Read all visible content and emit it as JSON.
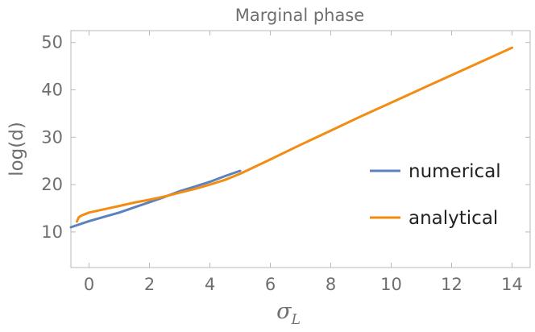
{
  "chart_data": {
    "type": "line",
    "title": "Marginal phase",
    "xlabel": "σ",
    "xlabel_subscript": "L",
    "ylabel": "log(d)",
    "xlim": [
      -0.6,
      14.6
    ],
    "ylim": [
      2.5,
      52.5
    ],
    "xticks": [
      0,
      2,
      4,
      6,
      8,
      10,
      12,
      14
    ],
    "yticks": [
      10,
      20,
      30,
      40,
      50
    ],
    "grid": false,
    "legend_position": "right",
    "series": [
      {
        "name": "numerical",
        "color": "#5b82bd",
        "x": [
          -0.6,
          0,
          0.5,
          1,
          1.5,
          2,
          2.5,
          3,
          3.5,
          4,
          4.5,
          5
        ],
        "y": [
          11.0,
          12.3,
          13.2,
          14.1,
          15.2,
          16.3,
          17.4,
          18.6,
          19.6,
          20.6,
          21.8,
          22.9
        ]
      },
      {
        "name": "analytical",
        "color": "#f28c12",
        "x": [
          -0.4,
          -0.35,
          -0.3,
          -0.2,
          0,
          0.5,
          1,
          1.5,
          2,
          2.5,
          3,
          3.5,
          4,
          4.5,
          5,
          6,
          7,
          8,
          9,
          10,
          11,
          12,
          13,
          14
        ],
        "y": [
          12.2,
          13.0,
          13.3,
          13.6,
          14.1,
          14.8,
          15.5,
          16.2,
          16.8,
          17.5,
          18.3,
          19.1,
          20.0,
          21.0,
          22.3,
          25.3,
          28.4,
          31.4,
          34.4,
          37.3,
          40.2,
          43.1,
          46.0,
          48.9
        ]
      }
    ]
  }
}
